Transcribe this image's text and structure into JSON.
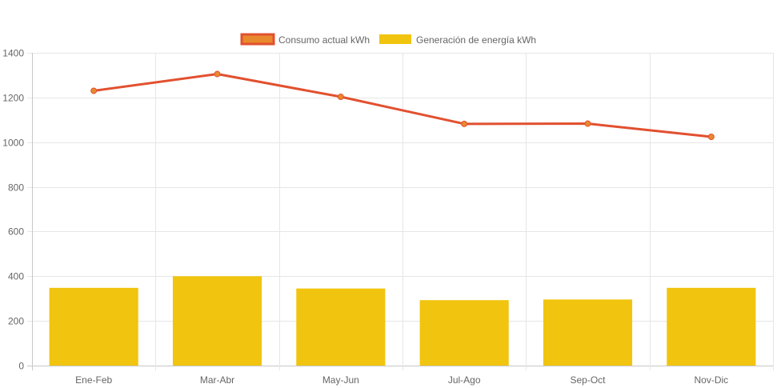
{
  "chart_data": {
    "type": "bar",
    "categories": [
      "Ene-Feb",
      "Mar-Abr",
      "May-Jun",
      "Jul-Ago",
      "Sep-Oct",
      "Nov-Dic"
    ],
    "series": [
      {
        "name": "Consumo actual kWh",
        "type": "line",
        "values": [
          1230,
          1305,
          1203,
          1082,
          1083,
          1024
        ],
        "color": "#e2502f",
        "point_fill": "#e8892d"
      },
      {
        "name": "Generación de energía kWh",
        "type": "bar",
        "values": [
          348,
          400,
          345,
          293,
          296,
          348
        ],
        "color": "#f1c40f"
      }
    ],
    "yticks": [
      0,
      200,
      400,
      600,
      800,
      1000,
      1200,
      1400
    ],
    "ylim": [
      0,
      1400
    ],
    "grid": true,
    "legend_position": "top-center",
    "title": "",
    "xlabel": "",
    "ylabel": ""
  }
}
